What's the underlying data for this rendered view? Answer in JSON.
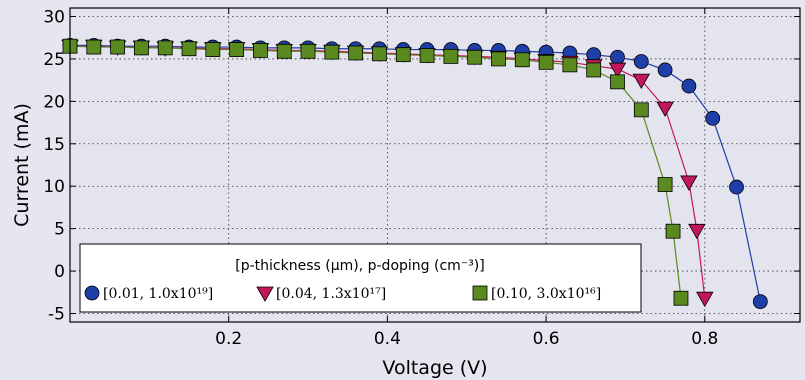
{
  "chart_data": {
    "type": "line",
    "xlabel": "Voltage (V)",
    "ylabel": "Current (mA)",
    "xlim": [
      0.0,
      0.92
    ],
    "ylim": [
      -6,
      31
    ],
    "xticks": [
      "0.2",
      "0.4",
      "0.6",
      "0.8"
    ],
    "yticks": [
      "-5",
      "0",
      "5",
      "10",
      "15",
      "20",
      "25",
      "30"
    ],
    "grid": true,
    "legend_placement": "lower-left",
    "legend_title": "[p-thickness (μm), p-doping (cm⁻³)]",
    "series": [
      {
        "name": "[0.01, 1.0x10¹⁹]",
        "color": "#1f3fa8",
        "marker": "circle",
        "x": [
          0.0,
          0.03,
          0.06,
          0.09,
          0.12,
          0.15,
          0.18,
          0.21,
          0.24,
          0.27,
          0.3,
          0.33,
          0.36,
          0.39,
          0.42,
          0.45,
          0.48,
          0.51,
          0.54,
          0.57,
          0.6,
          0.63,
          0.66,
          0.69,
          0.72,
          0.75,
          0.78,
          0.81,
          0.84,
          0.87
        ],
        "y": [
          26.6,
          26.6,
          26.5,
          26.5,
          26.5,
          26.4,
          26.4,
          26.4,
          26.3,
          26.3,
          26.3,
          26.2,
          26.2,
          26.2,
          26.1,
          26.1,
          26.1,
          26.0,
          26.0,
          25.9,
          25.8,
          25.7,
          25.5,
          25.2,
          24.7,
          23.7,
          21.8,
          18.0,
          9.9,
          -3.6
        ]
      },
      {
        "name": "[0.04, 1.3x10¹⁷]",
        "color": "#c2185b",
        "marker": "triangle-down",
        "x": [
          0.0,
          0.03,
          0.06,
          0.09,
          0.12,
          0.15,
          0.18,
          0.21,
          0.24,
          0.27,
          0.3,
          0.33,
          0.36,
          0.39,
          0.42,
          0.45,
          0.48,
          0.51,
          0.54,
          0.57,
          0.6,
          0.63,
          0.66,
          0.69,
          0.72,
          0.75,
          0.78,
          0.79,
          0.8
        ],
        "y": [
          26.5,
          26.5,
          26.4,
          26.4,
          26.3,
          26.3,
          26.2,
          26.2,
          26.1,
          26.0,
          26.0,
          25.9,
          25.8,
          25.7,
          25.6,
          25.5,
          25.4,
          25.3,
          25.2,
          25.0,
          24.8,
          24.6,
          24.2,
          23.8,
          22.5,
          19.2,
          10.5,
          4.8,
          -3.2
        ]
      },
      {
        "name": "[0.10, 3.0x10¹⁶]",
        "color": "#5a8a1f",
        "marker": "square",
        "x": [
          0.0,
          0.03,
          0.06,
          0.09,
          0.12,
          0.15,
          0.18,
          0.21,
          0.24,
          0.27,
          0.3,
          0.33,
          0.36,
          0.39,
          0.42,
          0.45,
          0.48,
          0.51,
          0.54,
          0.57,
          0.6,
          0.63,
          0.66,
          0.69,
          0.72,
          0.75,
          0.76,
          0.77
        ],
        "y": [
          26.5,
          26.4,
          26.4,
          26.3,
          26.3,
          26.2,
          26.1,
          26.1,
          26.0,
          25.9,
          25.9,
          25.8,
          25.7,
          25.6,
          25.5,
          25.4,
          25.3,
          25.2,
          25.0,
          24.9,
          24.6,
          24.3,
          23.7,
          22.3,
          19.0,
          10.2,
          4.7,
          -3.2
        ]
      }
    ]
  }
}
